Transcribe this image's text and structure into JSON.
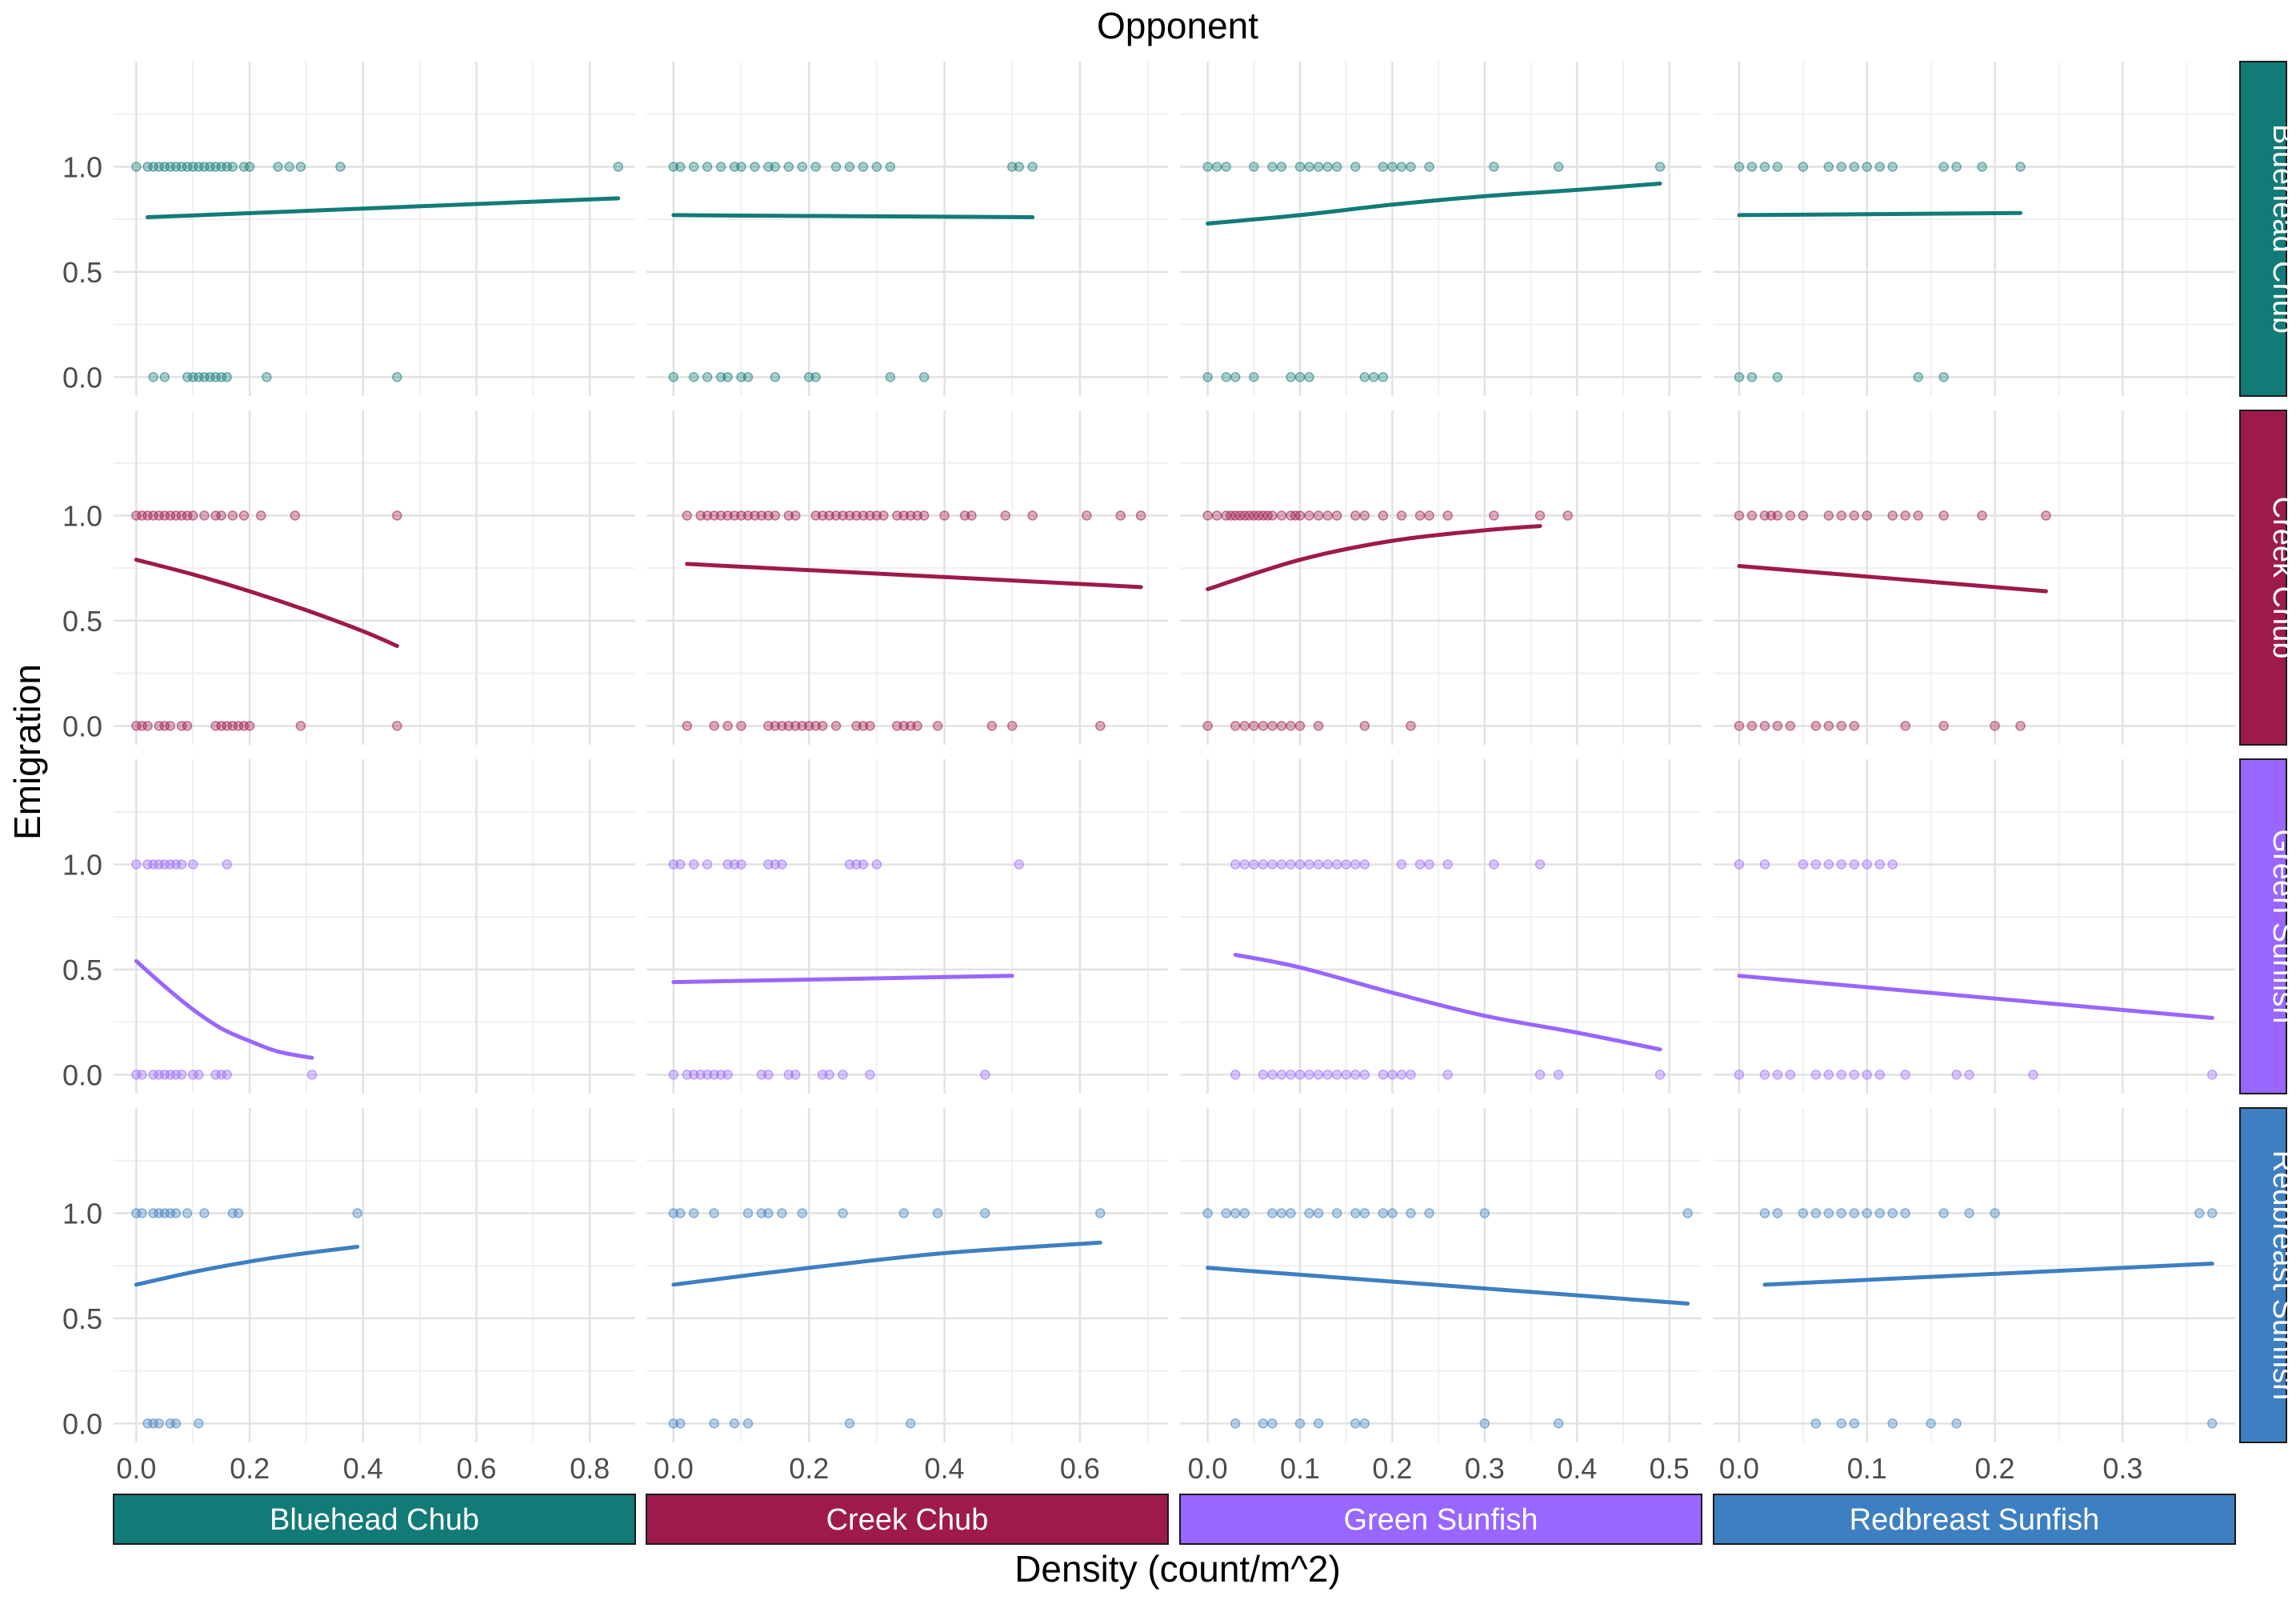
{
  "chart_data": {
    "type": "scatter",
    "title": "Opponent",
    "xlabel": "Density (count/m^2)",
    "ylabel": "Emigration",
    "column_facets": [
      "Bluehead Chub",
      "Creek Chub",
      "Green Sunfish",
      "Redbreast Sunfish"
    ],
    "row_facets": [
      "Bluehead Chub",
      "Creek Chub",
      "Green Sunfish",
      "Redbreast Sunfish"
    ],
    "colors": {
      "Bluehead Chub": "#127b78",
      "Creek Chub": "#9e1a4c",
      "Green Sunfish": "#9966ff",
      "Redbreast Sunfish": "#3e7fc1"
    },
    "y_ticks": [
      "0.0",
      "0.5",
      "1.0"
    ],
    "ylim": [
      -0.09,
      1.5
    ],
    "grid": true,
    "legend": "none",
    "columns": [
      {
        "opponent": "Bluehead Chub",
        "xlim": [
          -0.04,
          0.88
        ],
        "x_ticks": [
          "0.0",
          "0.2",
          "0.4",
          "0.6",
          "0.8"
        ],
        "x_tick_values": [
          0,
          0.2,
          0.4,
          0.6,
          0.8
        ]
      },
      {
        "opponent": "Creek Chub",
        "xlim": [
          -0.04,
          0.73
        ],
        "x_ticks": [
          "0.0",
          "0.2",
          "0.4",
          "0.6"
        ],
        "x_tick_values": [
          0,
          0.2,
          0.4,
          0.6
        ]
      },
      {
        "opponent": "Green Sunfish",
        "xlim": [
          -0.03,
          0.535
        ],
        "x_ticks": [
          "0.0",
          "0.1",
          "0.2",
          "0.3",
          "0.4",
          "0.5"
        ],
        "x_tick_values": [
          0,
          0.1,
          0.2,
          0.3,
          0.4,
          0.5
        ]
      },
      {
        "opponent": "Redbreast Sunfish",
        "xlim": [
          -0.02,
          0.388
        ],
        "x_ticks": [
          "0.0",
          "0.1",
          "0.2",
          "0.3"
        ],
        "x_tick_values": [
          0,
          0.1,
          0.2,
          0.3
        ]
      }
    ],
    "panels": [
      [
        {
          "ones": [
            0.0,
            0.02,
            0.03,
            0.04,
            0.05,
            0.06,
            0.07,
            0.08,
            0.09,
            0.1,
            0.11,
            0.12,
            0.13,
            0.14,
            0.15,
            0.16,
            0.17,
            0.19,
            0.2,
            0.25,
            0.27,
            0.29,
            0.36,
            0.85
          ],
          "zeros": [
            0.03,
            0.05,
            0.09,
            0.1,
            0.11,
            0.12,
            0.13,
            0.14,
            0.15,
            0.16,
            0.23,
            0.46
          ],
          "fit": [
            [
              0.02,
              0.76
            ],
            [
              0.85,
              0.85
            ]
          ]
        },
        {
          "ones": [
            0.0,
            0.01,
            0.03,
            0.05,
            0.07,
            0.09,
            0.1,
            0.12,
            0.14,
            0.15,
            0.17,
            0.19,
            0.21,
            0.24,
            0.26,
            0.28,
            0.3,
            0.32,
            0.5,
            0.51,
            0.53
          ],
          "zeros": [
            0.0,
            0.03,
            0.05,
            0.07,
            0.08,
            0.1,
            0.11,
            0.15,
            0.2,
            0.21,
            0.32,
            0.37
          ],
          "fit": [
            [
              0.0,
              0.77
            ],
            [
              0.53,
              0.76
            ]
          ]
        },
        {
          "ones": [
            0.0,
            0.01,
            0.02,
            0.05,
            0.07,
            0.08,
            0.1,
            0.11,
            0.12,
            0.13,
            0.14,
            0.16,
            0.19,
            0.2,
            0.21,
            0.22,
            0.24,
            0.31,
            0.38,
            0.49
          ],
          "zeros": [
            0.0,
            0.02,
            0.03,
            0.05,
            0.09,
            0.1,
            0.11,
            0.17,
            0.18,
            0.19
          ],
          "fit": [
            [
              0.0,
              0.73
            ],
            [
              0.1,
              0.77
            ],
            [
              0.2,
              0.82
            ],
            [
              0.3,
              0.86
            ],
            [
              0.4,
              0.89
            ],
            [
              0.49,
              0.92
            ]
          ]
        },
        {
          "ones": [
            0.0,
            0.01,
            0.02,
            0.03,
            0.05,
            0.07,
            0.08,
            0.09,
            0.1,
            0.11,
            0.12,
            0.16,
            0.17,
            0.19,
            0.22
          ],
          "zeros": [
            0.0,
            0.01,
            0.03,
            0.14,
            0.16
          ],
          "fit": [
            [
              0.0,
              0.77
            ],
            [
              0.22,
              0.78
            ]
          ]
        }
      ],
      [
        {
          "ones": [
            0.0,
            0.01,
            0.02,
            0.03,
            0.04,
            0.05,
            0.06,
            0.07,
            0.08,
            0.09,
            0.1,
            0.12,
            0.14,
            0.15,
            0.17,
            0.19,
            0.22,
            0.28,
            0.46
          ],
          "zeros": [
            0.0,
            0.01,
            0.02,
            0.04,
            0.05,
            0.06,
            0.08,
            0.09,
            0.14,
            0.15,
            0.16,
            0.17,
            0.18,
            0.19,
            0.2,
            0.29,
            0.46
          ],
          "fit": [
            [
              0.0,
              0.79
            ],
            [
              0.1,
              0.72
            ],
            [
              0.2,
              0.64
            ],
            [
              0.3,
              0.55
            ],
            [
              0.4,
              0.45
            ],
            [
              0.46,
              0.38
            ]
          ]
        },
        {
          "ones": [
            0.02,
            0.04,
            0.05,
            0.06,
            0.07,
            0.08,
            0.09,
            0.1,
            0.11,
            0.12,
            0.13,
            0.14,
            0.15,
            0.17,
            0.18,
            0.21,
            0.22,
            0.23,
            0.24,
            0.25,
            0.26,
            0.27,
            0.28,
            0.29,
            0.3,
            0.31,
            0.33,
            0.34,
            0.35,
            0.36,
            0.37,
            0.4,
            0.43,
            0.44,
            0.49,
            0.53,
            0.61,
            0.66,
            0.69
          ],
          "zeros": [
            0.02,
            0.06,
            0.08,
            0.1,
            0.14,
            0.15,
            0.16,
            0.17,
            0.18,
            0.19,
            0.2,
            0.21,
            0.22,
            0.24,
            0.27,
            0.28,
            0.29,
            0.33,
            0.34,
            0.35,
            0.36,
            0.39,
            0.47,
            0.5,
            0.63
          ],
          "fit": [
            [
              0.02,
              0.77
            ],
            [
              0.69,
              0.66
            ]
          ]
        },
        {
          "ones": [
            0.0,
            0.01,
            0.02,
            0.025,
            0.03,
            0.035,
            0.04,
            0.045,
            0.05,
            0.055,
            0.06,
            0.065,
            0.07,
            0.08,
            0.09,
            0.095,
            0.1,
            0.11,
            0.12,
            0.13,
            0.14,
            0.16,
            0.17,
            0.19,
            0.21,
            0.23,
            0.24,
            0.26,
            0.31,
            0.36,
            0.39
          ],
          "zeros": [
            0.0,
            0.03,
            0.04,
            0.05,
            0.06,
            0.07,
            0.08,
            0.09,
            0.1,
            0.12,
            0.17,
            0.22
          ],
          "fit": [
            [
              0.0,
              0.65
            ],
            [
              0.1,
              0.79
            ],
            [
              0.2,
              0.88
            ],
            [
              0.3,
              0.93
            ],
            [
              0.36,
              0.95
            ]
          ]
        },
        {
          "ones": [
            0.0,
            0.01,
            0.02,
            0.025,
            0.03,
            0.04,
            0.05,
            0.07,
            0.08,
            0.09,
            0.1,
            0.12,
            0.13,
            0.14,
            0.16,
            0.19,
            0.24
          ],
          "zeros": [
            0.0,
            0.01,
            0.02,
            0.03,
            0.04,
            0.06,
            0.07,
            0.08,
            0.09,
            0.13,
            0.16,
            0.2,
            0.22
          ],
          "fit": [
            [
              0.0,
              0.76
            ],
            [
              0.24,
              0.64
            ]
          ]
        }
      ],
      [
        {
          "ones": [
            0.0,
            0.02,
            0.03,
            0.04,
            0.05,
            0.06,
            0.07,
            0.08,
            0.1,
            0.16
          ],
          "zeros": [
            0.0,
            0.01,
            0.03,
            0.04,
            0.05,
            0.06,
            0.07,
            0.08,
            0.1,
            0.11,
            0.14,
            0.15,
            0.16,
            0.31
          ],
          "fit": [
            [
              0.0,
              0.54
            ],
            [
              0.05,
              0.42
            ],
            [
              0.1,
              0.31
            ],
            [
              0.15,
              0.22
            ],
            [
              0.2,
              0.16
            ],
            [
              0.25,
              0.11
            ],
            [
              0.31,
              0.08
            ]
          ]
        },
        {
          "ones": [
            0.0,
            0.01,
            0.03,
            0.05,
            0.08,
            0.09,
            0.1,
            0.14,
            0.15,
            0.16,
            0.26,
            0.27,
            0.28,
            0.3,
            0.51
          ],
          "zeros": [
            0.0,
            0.02,
            0.03,
            0.04,
            0.05,
            0.06,
            0.07,
            0.08,
            0.13,
            0.14,
            0.17,
            0.18,
            0.22,
            0.23,
            0.25,
            0.29,
            0.46
          ],
          "fit": [
            [
              0.0,
              0.44
            ],
            [
              0.5,
              0.47
            ]
          ]
        },
        {
          "ones": [
            0.03,
            0.04,
            0.05,
            0.06,
            0.07,
            0.08,
            0.09,
            0.1,
            0.11,
            0.12,
            0.13,
            0.14,
            0.15,
            0.16,
            0.17,
            0.21,
            0.23,
            0.24,
            0.26,
            0.31,
            0.36
          ],
          "zeros": [
            0.03,
            0.06,
            0.07,
            0.08,
            0.09,
            0.1,
            0.11,
            0.12,
            0.13,
            0.14,
            0.15,
            0.16,
            0.17,
            0.19,
            0.2,
            0.21,
            0.22,
            0.26,
            0.36,
            0.38,
            0.49
          ],
          "fit": [
            [
              0.03,
              0.57
            ],
            [
              0.1,
              0.51
            ],
            [
              0.2,
              0.39
            ],
            [
              0.3,
              0.28
            ],
            [
              0.4,
              0.2
            ],
            [
              0.49,
              0.12
            ]
          ]
        },
        {
          "ones": [
            0.0,
            0.02,
            0.05,
            0.06,
            0.07,
            0.08,
            0.09,
            0.1,
            0.11,
            0.12
          ],
          "zeros": [
            0.0,
            0.02,
            0.03,
            0.04,
            0.06,
            0.07,
            0.08,
            0.09,
            0.1,
            0.11,
            0.13,
            0.17,
            0.18,
            0.23,
            0.37
          ],
          "fit": [
            [
              0.0,
              0.47
            ],
            [
              0.37,
              0.27
            ]
          ]
        }
      ],
      [
        {
          "ones": [
            0.0,
            0.01,
            0.03,
            0.04,
            0.05,
            0.06,
            0.07,
            0.09,
            0.12,
            0.17,
            0.18,
            0.39
          ],
          "zeros": [
            0.02,
            0.03,
            0.04,
            0.06,
            0.07,
            0.11
          ],
          "fit": [
            [
              0.0,
              0.66
            ],
            [
              0.1,
              0.72
            ],
            [
              0.2,
              0.77
            ],
            [
              0.3,
              0.81
            ],
            [
              0.39,
              0.84
            ]
          ]
        },
        {
          "ones": [
            0.0,
            0.01,
            0.03,
            0.06,
            0.11,
            0.13,
            0.14,
            0.16,
            0.19,
            0.25,
            0.34,
            0.39,
            0.46,
            0.63
          ],
          "zeros": [
            0.0,
            0.01,
            0.06,
            0.09,
            0.11,
            0.26,
            0.35
          ],
          "fit": [
            [
              0.0,
              0.66
            ],
            [
              0.2,
              0.74
            ],
            [
              0.4,
              0.81
            ],
            [
              0.63,
              0.86
            ]
          ]
        },
        {
          "ones": [
            0.0,
            0.02,
            0.03,
            0.04,
            0.07,
            0.08,
            0.09,
            0.11,
            0.12,
            0.14,
            0.16,
            0.17,
            0.19,
            0.2,
            0.22,
            0.24,
            0.3,
            0.52
          ],
          "zeros": [
            0.03,
            0.06,
            0.07,
            0.1,
            0.12,
            0.16,
            0.17,
            0.3,
            0.38
          ],
          "fit": [
            [
              0.0,
              0.74
            ],
            [
              0.52,
              0.57
            ]
          ]
        },
        {
          "ones": [
            0.02,
            0.03,
            0.05,
            0.06,
            0.07,
            0.08,
            0.09,
            0.1,
            0.11,
            0.12,
            0.13,
            0.16,
            0.18,
            0.2,
            0.36,
            0.37
          ],
          "zeros": [
            0.06,
            0.08,
            0.09,
            0.12,
            0.15,
            0.17,
            0.37
          ],
          "fit": [
            [
              0.02,
              0.66
            ],
            [
              0.37,
              0.76
            ]
          ]
        }
      ]
    ]
  }
}
